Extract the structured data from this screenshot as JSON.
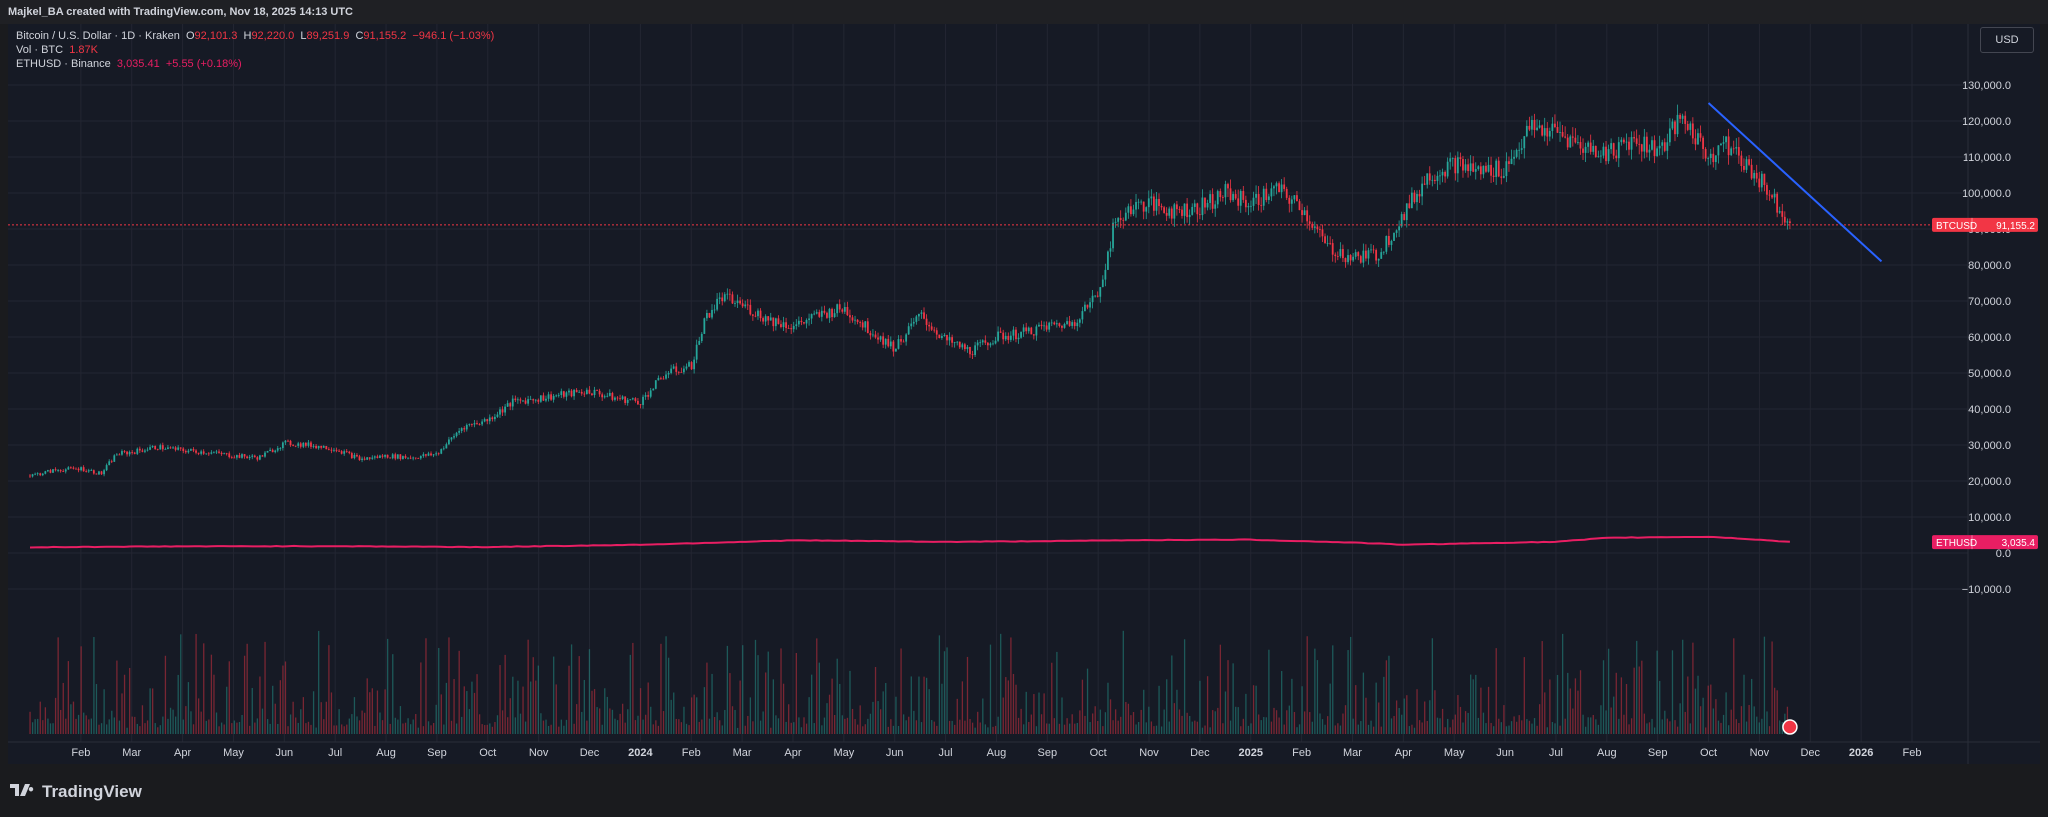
{
  "header": {
    "title": "Majkel_BA created with TradingView.com, Nov 18, 2025 14:13 UTC"
  },
  "legend": {
    "symbol": "Bitcoin / U.S. Dollar · 1D · Kraken",
    "open_label": "O",
    "open": "92,101.3",
    "high_label": "H",
    "high": "92,220.0",
    "low_label": "L",
    "low": "89,251.9",
    "close_label": "C",
    "close": "91,155.2",
    "change": "−946.1 (−1.03%)",
    "vol_label": "Vol · BTC",
    "vol": "1.87K",
    "eth_label": "ETHUSD · Binance",
    "eth_price": "3,035.41",
    "eth_change": "+5.55 (+0.18%)"
  },
  "currency_button": "USD",
  "footer": {
    "brand": "TradingView"
  },
  "colors": {
    "up": "#26a69a",
    "down": "#f23645",
    "eth_line": "#e91e63",
    "trend_line": "#2962ff",
    "background": "#161a25",
    "grid": "#232632"
  },
  "chart_data": {
    "type": "line",
    "title": "",
    "y_axis": {
      "ylim": [
        -10000,
        133000
      ],
      "ticks": [
        "130,000.0",
        "120,000.0",
        "110,000.0",
        "100,000.0",
        "90,000.0",
        "80,000.0",
        "70,000.0",
        "60,000.0",
        "50,000.0",
        "40,000.0",
        "30,000.0",
        "20,000.0",
        "10,000.0",
        "0.0",
        "−10,000.0"
      ],
      "tick_values": [
        130000,
        120000,
        110000,
        100000,
        90000,
        80000,
        70000,
        60000,
        50000,
        40000,
        30000,
        20000,
        10000,
        0,
        -10000
      ]
    },
    "x_axis": {
      "ticks": [
        "Feb",
        "Mar",
        "Apr",
        "May",
        "Jun",
        "Jul",
        "Aug",
        "Sep",
        "Oct",
        "Nov",
        "Dec",
        "2024",
        "Feb",
        "Mar",
        "Apr",
        "May",
        "Jun",
        "Jul",
        "Aug",
        "Sep",
        "Oct",
        "Nov",
        "Dec",
        "2025",
        "Feb",
        "Mar",
        "Apr",
        "May",
        "Jun",
        "Jul",
        "Aug",
        "Sep",
        "Oct",
        "Nov",
        "Dec",
        "2026",
        "Feb"
      ],
      "tick_months": [
        1,
        2,
        3,
        4,
        5,
        6,
        7,
        8,
        9,
        10,
        11,
        12,
        13,
        14,
        15,
        16,
        17,
        18,
        19,
        20,
        21,
        22,
        23,
        24,
        25,
        26,
        27,
        28,
        29,
        30,
        31,
        32,
        33,
        34,
        35,
        36,
        37
      ],
      "start": "2023-01",
      "end_month_index": 37.8
    },
    "series": [
      {
        "name": "BTCUSD",
        "last_value": "91,155.2",
        "x": [
          0.0,
          0.5,
          1.0,
          1.4,
          1.7,
          2.0,
          2.5,
          3.0,
          3.5,
          4.0,
          4.5,
          5.0,
          5.5,
          6.0,
          6.5,
          7.0,
          7.5,
          8.0,
          8.5,
          9.0,
          9.5,
          10.0,
          10.5,
          11.0,
          11.5,
          12.0,
          12.5,
          13.0,
          13.3,
          13.6,
          14.0,
          14.5,
          15.0,
          15.5,
          16.0,
          16.5,
          17.0,
          17.5,
          18.0,
          18.5,
          19.0,
          19.5,
          20.0,
          20.5,
          21.0,
          21.3,
          21.6,
          22.0,
          22.5,
          23.0,
          23.5,
          24.0,
          24.5,
          25.0,
          25.5,
          26.0,
          26.5,
          27.0,
          27.5,
          28.0,
          28.5,
          29.0,
          29.5,
          30.0,
          30.5,
          31.0,
          31.5,
          32.0,
          32.5,
          33.0,
          33.3,
          33.6,
          34.0,
          34.3,
          34.6
        ],
        "y": [
          21500,
          23000,
          23500,
          22000,
          27500,
          28000,
          29500,
          28500,
          28000,
          27000,
          26500,
          30500,
          30000,
          29000,
          26000,
          27000,
          26500,
          27500,
          35000,
          37000,
          42000,
          43000,
          44000,
          45000,
          43000,
          42000,
          50000,
          52000,
          66000,
          71000,
          69000,
          65000,
          63000,
          66000,
          68000,
          62000,
          57000,
          66000,
          59000,
          56000,
          60000,
          61000,
          63000,
          64000,
          72000,
          90000,
          96000,
          97000,
          95000,
          96000,
          100000,
          97000,
          101000,
          96000,
          85000,
          82000,
          83000,
          94000,
          105000,
          108000,
          106000,
          107000,
          118000,
          117000,
          113000,
          111000,
          115000,
          112000,
          121000,
          110000,
          114000,
          110000,
          104000,
          98000,
          91155
        ]
      },
      {
        "name": "ETHUSD",
        "last_value": "3,035.4",
        "x": [
          0,
          3,
          6,
          9,
          12,
          15,
          16,
          18,
          20,
          22,
          24,
          26,
          27,
          28,
          30,
          31,
          32,
          33,
          34,
          34.6
        ],
        "y": [
          1600,
          1850,
          1900,
          1650,
          2300,
          3500,
          3400,
          3100,
          3300,
          3600,
          3700,
          2900,
          2300,
          2600,
          3100,
          4200,
          4400,
          4500,
          3700,
          3035
        ]
      },
      {
        "name": "Vol · BTC",
        "values_note_free": true,
        "last_value": "1.87K"
      }
    ],
    "trend_line": {
      "x": [
        33.0,
        36.4
      ],
      "y": [
        125000,
        81000
      ]
    },
    "price_label": {
      "name": "BTCUSD",
      "value": "91,155.2"
    },
    "eth_label": {
      "name": "ETHUSD",
      "value": "3,035.4"
    },
    "grid": true,
    "legend_placement": "top-left"
  }
}
